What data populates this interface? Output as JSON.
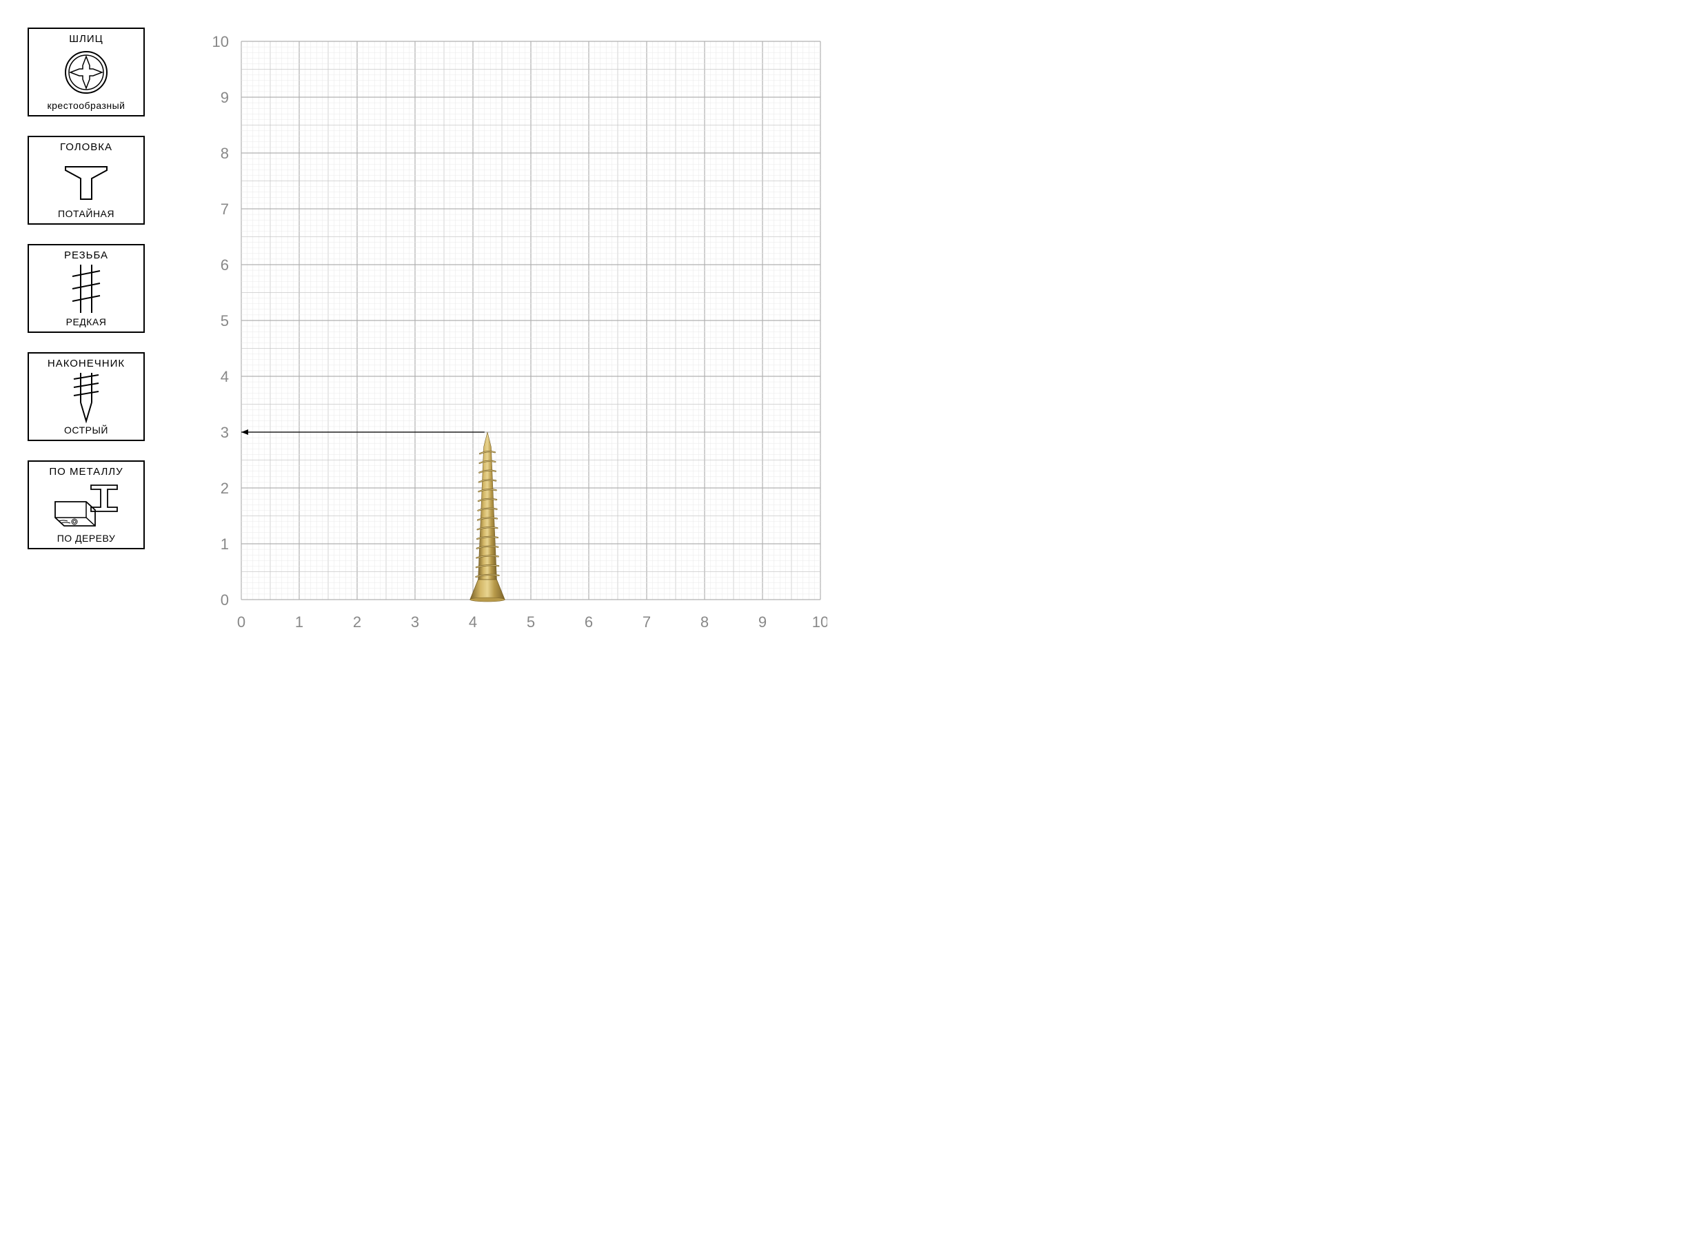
{
  "sidebar": {
    "items": [
      {
        "title": "ШЛИЦ",
        "sub": "крестообразный",
        "icon": "phillips"
      },
      {
        "title": "ГОЛОВКА",
        "sub": "ПОТАЙНАЯ",
        "icon": "countersunk"
      },
      {
        "title": "РЕЗЬБА",
        "sub": "РЕДКАЯ",
        "icon": "coarse-thread"
      },
      {
        "title": "НАКОНЕЧНИК",
        "sub": "ОСТРЫЙ",
        "icon": "sharp-tip"
      },
      {
        "title": "ПО МЕТАЛЛУ",
        "sub": "ПО ДЕРЕВУ",
        "icon": "materials"
      }
    ]
  },
  "grid": {
    "type": "measurement-grid",
    "x_range": [
      0,
      10
    ],
    "y_range": [
      0,
      10
    ],
    "x_ticks": [
      0,
      1,
      2,
      3,
      4,
      5,
      6,
      7,
      8,
      9,
      10
    ],
    "y_ticks": [
      0,
      1,
      2,
      3,
      4,
      5,
      6,
      7,
      8,
      9,
      10
    ],
    "minor_per_major": 10,
    "axis_label_color": "#8a8a8a",
    "axis_label_fontsize": 22,
    "grid_color_minor": "#e8e8e8",
    "grid_color_major": "#b0b0b0",
    "grid_color_half": "#c8c8c8",
    "background_color": "#ffffff",
    "indicator_line": {
      "y": 3,
      "x_from": 0,
      "x_to": 4.2,
      "color": "#000000"
    },
    "screw": {
      "x_center": 4.25,
      "y_base": 0,
      "length": 3.0,
      "head_width": 0.6,
      "shaft_width": 0.32,
      "color_light": "#d4b868",
      "color_mid": "#b89a4a",
      "color_dark": "#7a6228",
      "color_highlight": "#e8d490"
    }
  }
}
